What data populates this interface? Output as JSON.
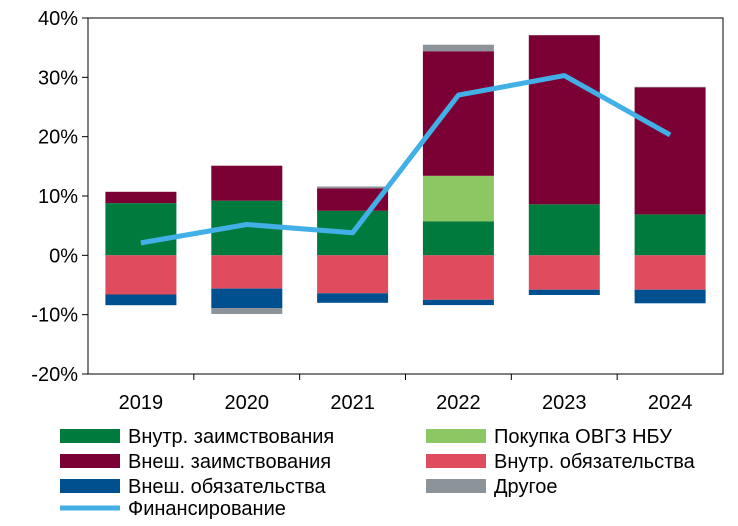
{
  "chart_data": {
    "type": "bar",
    "stacked": true,
    "categories": [
      "2019",
      "2020",
      "2021",
      "2022",
      "2023",
      "2024"
    ],
    "y_ticks": [
      "40%",
      "30%",
      "20%",
      "10%",
      "0%",
      "-10%",
      "-20%"
    ],
    "ylim": [
      -20,
      40
    ],
    "grid": false,
    "legend_position": "bottom",
    "series": [
      {
        "name": "Внутр. заимствования",
        "color": "#007A3D",
        "values": [
          8.8,
          9.2,
          7.5,
          5.7,
          8.6,
          6.9
        ]
      },
      {
        "name": "Покупка ОВГЗ НБУ",
        "color": "#8DC764",
        "values": [
          0,
          0,
          0,
          7.7,
          0,
          0
        ]
      },
      {
        "name": "Внеш. заимствования",
        "color": "#7B0033",
        "values": [
          1.9,
          5.9,
          3.8,
          21.0,
          28.5,
          21.4
        ]
      },
      {
        "name": "Внутр. обязательства",
        "color": "#E14B5E",
        "values": [
          -6.6,
          -5.6,
          -6.4,
          -7.5,
          -5.8,
          -5.8
        ]
      },
      {
        "name": "Внеш. обязательства",
        "color": "#00508F",
        "values": [
          -1.8,
          -3.3,
          -1.6,
          -0.9,
          -0.9,
          -2.3
        ]
      },
      {
        "name": "Другое",
        "color": "#8C9399",
        "values": [
          0,
          -1.0,
          0.3,
          1.1,
          0,
          0.1
        ]
      }
    ],
    "line": {
      "name": "Финансирование",
      "color": "#42B0E6",
      "values": [
        2.1,
        5.2,
        3.8,
        27.0,
        30.3,
        20.3
      ]
    }
  }
}
